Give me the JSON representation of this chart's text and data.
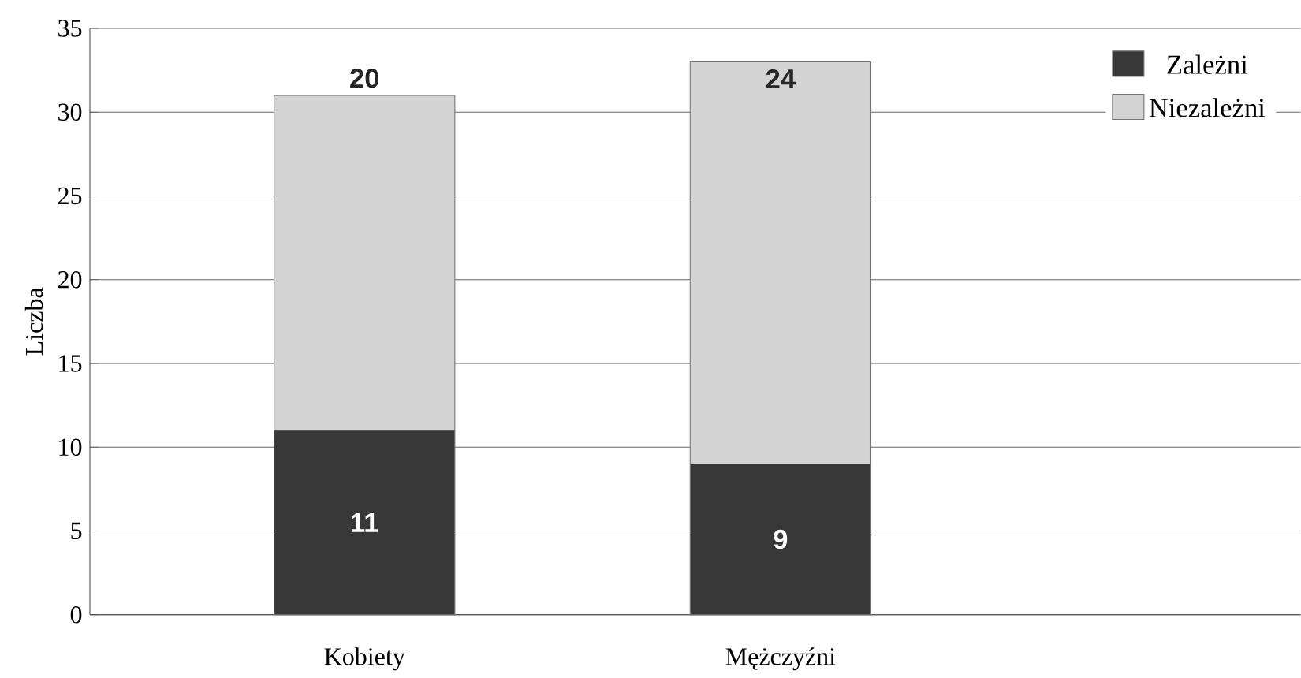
{
  "chart_data": {
    "type": "bar",
    "stacked": true,
    "ylabel": "Liczba",
    "categories": [
      "Kobiety",
      "Mężczyźni"
    ],
    "series": [
      {
        "name": "Zależni",
        "color": "#383838",
        "values": [
          11,
          9
        ],
        "value_labels": [
          "11",
          "9"
        ]
      },
      {
        "name": "Niezależni",
        "color": "#d3d3d3",
        "values": [
          20,
          24
        ],
        "value_labels": [
          "20",
          "24"
        ]
      }
    ],
    "ylim": [
      0,
      35
    ],
    "yticks": [
      0,
      5,
      10,
      15,
      20,
      25,
      30,
      35
    ],
    "grid": "y",
    "legend": "top right"
  }
}
